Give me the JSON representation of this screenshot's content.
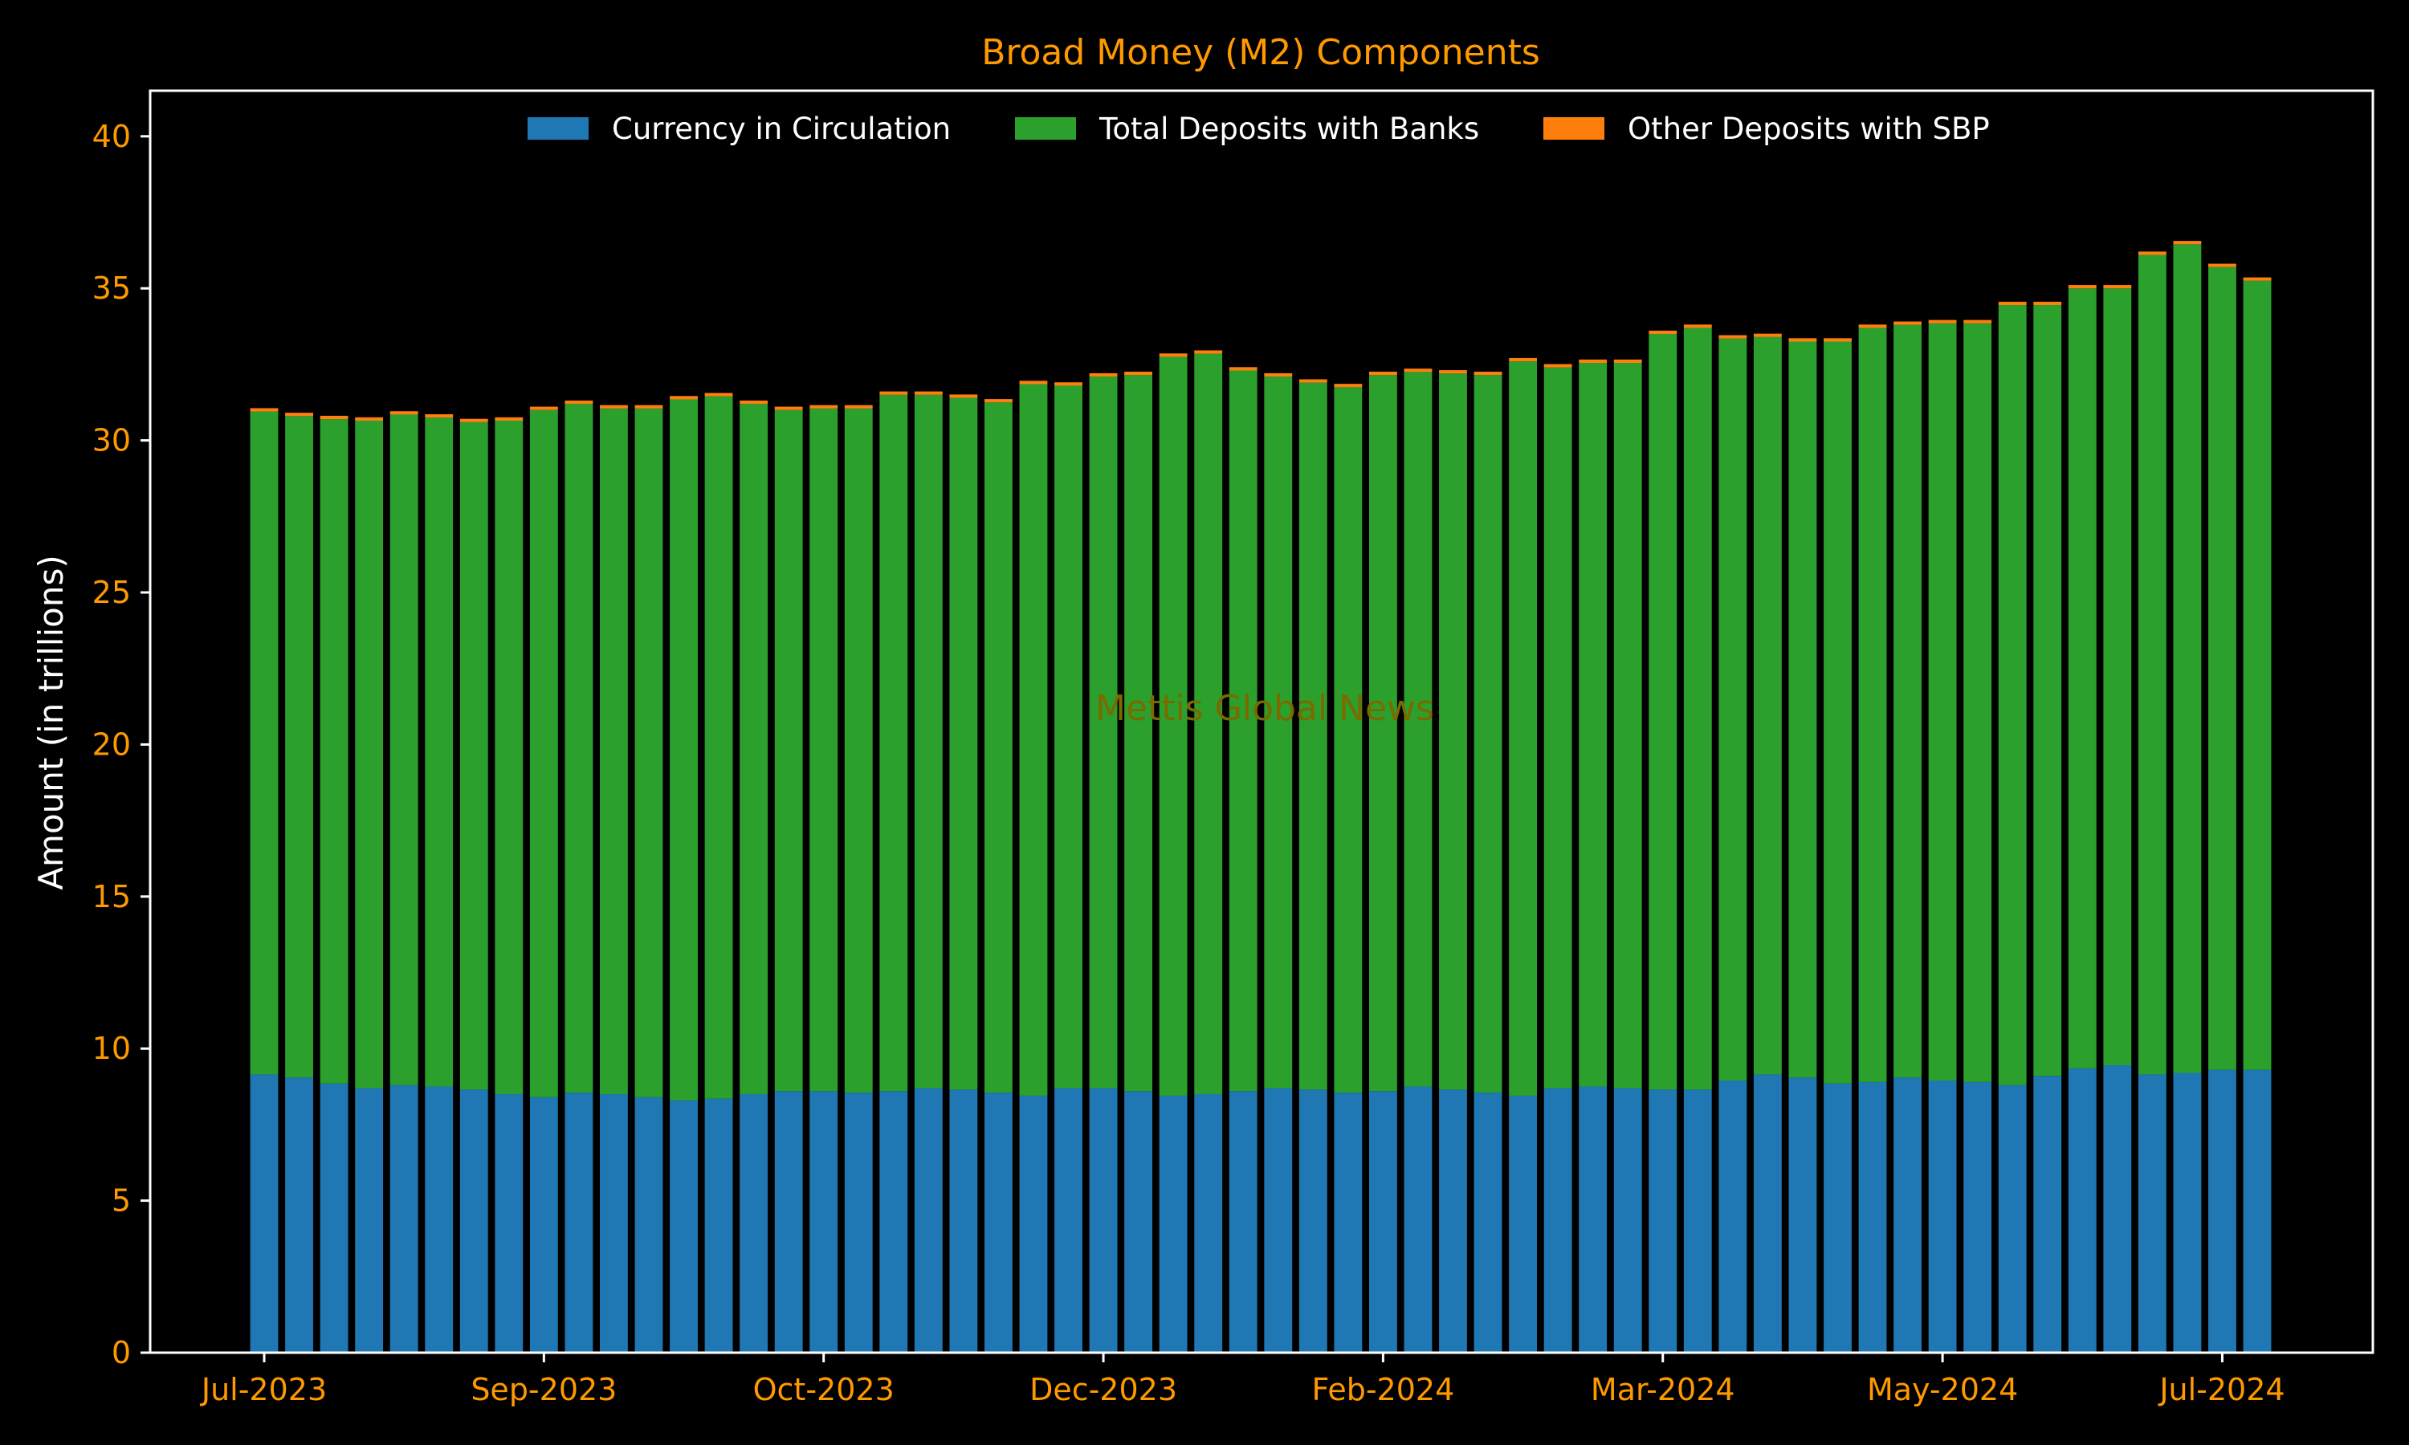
{
  "chart_data": {
    "type": "bar",
    "stacked": true,
    "title": "Broad Money (M2) Components",
    "xlabel": "",
    "ylabel": "Amount (in trillions)",
    "ylim": [
      0,
      41.5
    ],
    "yticks": [
      0,
      5,
      10,
      15,
      20,
      25,
      30,
      35,
      40
    ],
    "xtick_labels": [
      {
        "label": "Jul-2023",
        "bar_index": 0
      },
      {
        "label": "Sep-2023",
        "bar_index": 8
      },
      {
        "label": "Oct-2023",
        "bar_index": 16
      },
      {
        "label": "Dec-2023",
        "bar_index": 24
      },
      {
        "label": "Feb-2024",
        "bar_index": 32
      },
      {
        "label": "Mar-2024",
        "bar_index": 40
      },
      {
        "label": "May-2024",
        "bar_index": 48
      },
      {
        "label": "Jul-2024",
        "bar_index": 56
      }
    ],
    "legend_position": "top-center",
    "grid": false,
    "watermark": "Mettis Global News",
    "colors": {
      "background": "#000000",
      "title": "#ff9900",
      "tick_labels": "#ff9900",
      "axis_label": "#ffffff",
      "spines": "#ffffff",
      "watermark": "#7a6a00"
    },
    "series": [
      {
        "name": "Currency in Circulation",
        "color": "#1f77b4",
        "values": [
          9.15,
          9.05,
          8.85,
          8.7,
          8.8,
          8.75,
          8.65,
          8.5,
          8.4,
          8.55,
          8.5,
          8.4,
          8.3,
          8.35,
          8.5,
          8.6,
          8.6,
          8.55,
          8.6,
          8.7,
          8.65,
          8.55,
          8.45,
          8.7,
          8.7,
          8.6,
          8.45,
          8.5,
          8.6,
          8.7,
          8.65,
          8.55,
          8.6,
          8.75,
          8.65,
          8.55,
          8.45,
          8.7,
          8.75,
          8.7,
          8.65,
          8.65,
          8.95,
          9.15,
          9.05,
          8.85,
          8.9,
          9.05,
          8.95,
          8.9,
          8.8,
          9.1,
          9.35,
          9.45,
          9.15,
          9.2,
          9.3,
          9.3
        ]
      },
      {
        "name": "Total Deposits with Banks",
        "color": "#2ca02c",
        "values": [
          21.8,
          21.75,
          21.85,
          21.95,
          22.05,
          22.0,
          21.95,
          22.15,
          22.6,
          22.65,
          22.55,
          22.65,
          23.05,
          23.1,
          22.7,
          22.4,
          22.45,
          22.5,
          22.9,
          22.8,
          22.75,
          22.7,
          23.4,
          23.1,
          23.4,
          23.55,
          24.3,
          24.35,
          23.7,
          23.4,
          23.25,
          23.2,
          23.55,
          23.5,
          23.55,
          23.6,
          24.15,
          23.7,
          23.8,
          23.85,
          24.85,
          25.05,
          24.4,
          24.25,
          24.2,
          24.4,
          24.8,
          24.75,
          24.9,
          24.95,
          25.65,
          25.35,
          25.65,
          25.55,
          26.95,
          27.25,
          26.4,
          25.95
        ]
      },
      {
        "name": "Other Deposits with SBP",
        "color": "#ff7f0e",
        "values": [
          0.11,
          0.11,
          0.11,
          0.11,
          0.11,
          0.11,
          0.11,
          0.11,
          0.11,
          0.11,
          0.11,
          0.11,
          0.11,
          0.11,
          0.11,
          0.11,
          0.11,
          0.11,
          0.11,
          0.11,
          0.11,
          0.11,
          0.11,
          0.11,
          0.11,
          0.11,
          0.11,
          0.11,
          0.11,
          0.11,
          0.11,
          0.11,
          0.11,
          0.11,
          0.11,
          0.11,
          0.11,
          0.11,
          0.11,
          0.11,
          0.11,
          0.11,
          0.11,
          0.11,
          0.11,
          0.11,
          0.11,
          0.11,
          0.11,
          0.11,
          0.11,
          0.11,
          0.11,
          0.11,
          0.11,
          0.11,
          0.11,
          0.11
        ]
      }
    ]
  }
}
